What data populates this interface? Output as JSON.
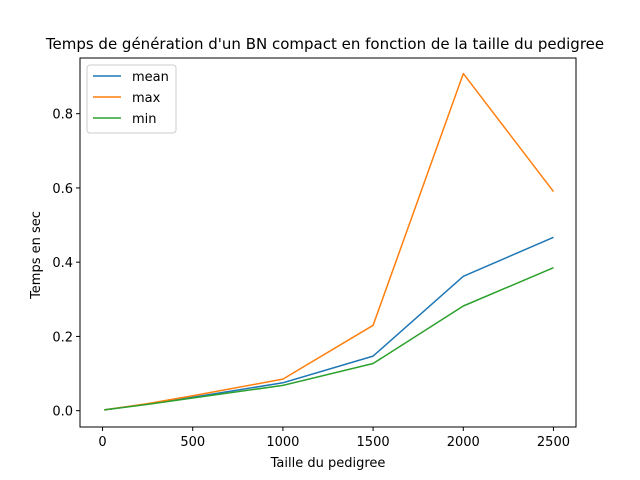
{
  "chart_data": {
    "type": "line",
    "title": "Temps de génération d'un BN compact en fonction de la taille du pedigree",
    "xlabel": "Taille du pedigree",
    "ylabel": "Temps en sec",
    "x": [
      10,
      250,
      500,
      1000,
      1500,
      2000,
      2500
    ],
    "series": [
      {
        "name": "mean",
        "color": "#1f77b4",
        "values": [
          0.002,
          0.018,
          0.036,
          0.075,
          0.147,
          0.362,
          0.467
        ]
      },
      {
        "name": "max",
        "color": "#ff7f0e",
        "values": [
          0.002,
          0.019,
          0.04,
          0.085,
          0.23,
          0.908,
          0.59
        ]
      },
      {
        "name": "min",
        "color": "#2ca02c",
        "values": [
          0.002,
          0.017,
          0.034,
          0.068,
          0.127,
          0.282,
          0.385
        ]
      }
    ],
    "xlim": [
      -125,
      2625
    ],
    "ylim": [
      -0.044,
      0.95
    ],
    "xticks": [
      0,
      500,
      1000,
      1500,
      2000,
      2500
    ],
    "yticks": [
      0.0,
      0.2,
      0.4,
      0.6,
      0.8
    ],
    "ytick_labels": [
      "0.0",
      "0.2",
      "0.4",
      "0.6",
      "0.8"
    ],
    "grid": false,
    "legend_position": "upper-left"
  }
}
